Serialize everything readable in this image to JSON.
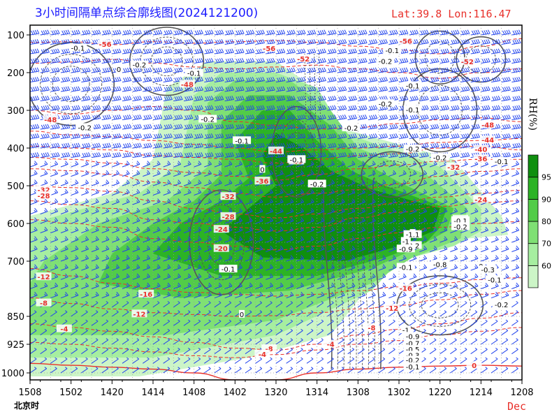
{
  "header": {
    "title": "3小时间隔单点综合廓线图(2024121200)",
    "location": "Lat:39.8  Lon:116.47"
  },
  "colors": {
    "temperature": "#e8302a",
    "barbs": "#2244ee",
    "omega": "#555555",
    "rh_levels": [
      "#ccf5c7",
      "#a6eea0",
      "#7fe074",
      "#52cc48",
      "#2cb325",
      "#0f8f0f"
    ]
  },
  "chart_data": {
    "type": "time-height cross section",
    "title": "3小时间隔单点综合廓线图(2024121200)",
    "x": {
      "tick_labels": [
        "1508",
        "1502",
        "1420",
        "1414",
        "1408",
        "1402",
        "1320",
        "1314",
        "1308",
        "1302",
        "1220",
        "1214",
        "1208"
      ],
      "name": "北京时",
      "month_label": "Dec",
      "range_hours": [
        0,
        72
      ],
      "direction": "reversed"
    },
    "y": {
      "tick_labels": [
        "100",
        "200",
        "300",
        "400",
        "500",
        "600",
        "700",
        "850",
        "925",
        "1000"
      ],
      "levels_hpa": [
        100,
        200,
        300,
        400,
        500,
        600,
        700,
        850,
        925,
        1000
      ],
      "range_hpa": [
        75,
        1010
      ]
    },
    "grid": true,
    "colorbar": {
      "title": "RH(%)",
      "tick_labels": [
        "60",
        "70",
        "80",
        "90",
        "95"
      ],
      "levels": [
        55,
        60,
        70,
        80,
        90,
        95,
        100
      ]
    },
    "temperature_isotherms": [
      {
        "label": "-56",
        "value": -56,
        "x": 55,
        "p": 118
      },
      {
        "label": "-56",
        "value": -56,
        "x": 35,
        "p": 137
      },
      {
        "label": "-56",
        "value": -56,
        "x": 11,
        "p": 126
      },
      {
        "label": "-52",
        "value": -52,
        "x": 64,
        "p": 172
      },
      {
        "label": "-52",
        "value": -52,
        "x": 40,
        "p": 165
      },
      {
        "label": "-48",
        "value": -48,
        "x": 23,
        "p": 232
      },
      {
        "label": "-48",
        "value": -48,
        "x": 67,
        "p": 340
      },
      {
        "label": "-48",
        "value": -48,
        "x": 3,
        "p": 326
      },
      {
        "label": "-44",
        "value": -44,
        "x": 67,
        "p": 380
      },
      {
        "label": "-44",
        "value": -44,
        "x": 36,
        "p": 409
      },
      {
        "label": "-40",
        "value": -40,
        "x": 66,
        "p": 405
      },
      {
        "label": "-40",
        "value": -40,
        "x": 39,
        "p": 436
      },
      {
        "label": "-36",
        "value": -36,
        "x": 66,
        "p": 430
      },
      {
        "label": "-36",
        "value": -36,
        "x": 34,
        "p": 489
      },
      {
        "label": "-32",
        "value": -32,
        "x": 62,
        "p": 452
      },
      {
        "label": "-32",
        "value": -32,
        "x": 29,
        "p": 530
      },
      {
        "label": "-32",
        "value": -32,
        "x": 2,
        "p": 512
      },
      {
        "label": "-28",
        "value": -28,
        "x": 29,
        "p": 583
      },
      {
        "label": "-28",
        "value": -28,
        "x": 2,
        "p": 528
      },
      {
        "label": "-24",
        "value": -24,
        "x": 66,
        "p": 538
      },
      {
        "label": "-24",
        "value": -24,
        "x": 28,
        "p": 617
      },
      {
        "label": "-20",
        "value": -20,
        "x": 63,
        "p": 590
      },
      {
        "label": "-20",
        "value": -20,
        "x": 28,
        "p": 668
      },
      {
        "label": "-16",
        "value": -16,
        "x": 55,
        "p": 775
      },
      {
        "label": "-16",
        "value": -16,
        "x": 17,
        "p": 791
      },
      {
        "label": "-12",
        "value": -12,
        "x": 53,
        "p": 829
      },
      {
        "label": "-12",
        "value": -12,
        "x": 16,
        "p": 845
      },
      {
        "label": "-12",
        "value": -12,
        "x": 2,
        "p": 744
      },
      {
        "label": "-8",
        "value": -8,
        "x": 50,
        "p": 882
      },
      {
        "label": "-8",
        "value": -8,
        "x": 35,
        "p": 938
      },
      {
        "label": "-8",
        "value": -8,
        "x": 2,
        "p": 815
      },
      {
        "label": "-4",
        "value": -4,
        "x": 44,
        "p": 926
      },
      {
        "label": "-4",
        "value": -4,
        "x": 34,
        "p": 952
      },
      {
        "label": "-4",
        "value": -4,
        "x": 5,
        "p": 885
      },
      {
        "label": "0",
        "value": 0,
        "x": 65,
        "p": 982
      }
    ],
    "vertical_velocity_contours": [
      {
        "label": "-0.1",
        "x": 65,
        "p": 135
      },
      {
        "label": "-0.1",
        "x": 58,
        "p": 127
      },
      {
        "label": "-0.2",
        "x": 47,
        "p": 180
      },
      {
        "label": "0",
        "x": 59,
        "p": 136
      },
      {
        "label": "-0.2",
        "x": 47,
        "p": 214
      },
      {
        "label": "-0.2",
        "x": 53,
        "p": 210
      },
      {
        "label": "0",
        "x": 46,
        "p": 230
      },
      {
        "label": "-0.1",
        "x": 37,
        "p": 240
      },
      {
        "label": "-0.2",
        "x": 45,
        "p": 255
      },
      {
        "label": "-0.1",
        "x": 44,
        "p": 281
      },
      {
        "label": "0",
        "x": 38,
        "p": 295
      },
      {
        "label": "-0.2",
        "x": 59,
        "p": 355
      },
      {
        "label": "-0.1",
        "x": 55,
        "p": 373
      },
      {
        "label": "-0.2",
        "x": 40,
        "p": 403
      },
      {
        "label": "-0.1",
        "x": 32,
        "p": 443
      },
      {
        "label": "-0.1",
        "x": 25,
        "p": 507
      },
      {
        "label": "-0.2",
        "x": 22,
        "p": 542
      },
      {
        "label": "0",
        "x": 29,
        "p": 466
      },
      {
        "label": "0",
        "x": 23,
        "p": 516
      },
      {
        "label": "0",
        "x": 45,
        "p": 629
      },
      {
        "label": "0",
        "x": 37,
        "p": 637
      },
      {
        "label": "-0.1",
        "x": 70,
        "p": 718
      },
      {
        "label": "0",
        "x": 7,
        "p": 735
      },
      {
        "label": "0",
        "x": 2,
        "p": 781
      },
      {
        "label": "-0.2",
        "x": 18,
        "p": 807
      },
      {
        "label": "-0.1",
        "x": 17,
        "p": 867
      },
      {
        "label": "-0.3",
        "x": 19,
        "p": 716
      },
      {
        "label": "-1.1",
        "x": 19,
        "p": 705
      },
      {
        "label": "-0.9",
        "x": 20,
        "p": 689
      },
      {
        "label": "-1",
        "x": 20,
        "p": 751
      },
      {
        "label": "-0.8",
        "x": 44,
        "p": 771
      },
      {
        "label": "-0.1",
        "x": 42,
        "p": 716
      },
      {
        "label": "-0.2",
        "x": 32,
        "p": 717
      },
      {
        "label": "0",
        "x": 64,
        "p": 719
      },
      {
        "label": "-1",
        "x": 19,
        "p": 720
      },
      {
        "label": "-0.9",
        "x": 18,
        "p": 742
      },
      {
        "label": "-0.3",
        "x": 62,
        "p": 824
      },
      {
        "label": "-0.2",
        "x": 59,
        "p": 847
      },
      {
        "label": "-0.1",
        "x": 57,
        "p": 864
      },
      {
        "label": "-0.5",
        "x": 18,
        "p": 870
      },
      {
        "label": "-0.4",
        "x": 17,
        "p": 896
      },
      {
        "label": "-0.1",
        "x": 16,
        "p": 934
      },
      {
        "label": "-0.2",
        "x": 16,
        "p": 956
      },
      {
        "label": "0",
        "x": 15,
        "p": 982
      }
    ],
    "vv_label_selection": [
      {
        "label": "-0.1",
        "x": 65,
        "p": 136
      },
      {
        "label": "-0.1",
        "x": 48,
        "p": 203
      },
      {
        "label": "-0.2",
        "x": 56,
        "p": 181
      },
      {
        "label": "0",
        "x": 59,
        "p": 193
      },
      {
        "label": "-0.2",
        "x": 46,
        "p": 325
      },
      {
        "label": "-0.2",
        "x": 64,
        "p": 347
      },
      {
        "label": "-0.1",
        "x": 41,
        "p": 382
      },
      {
        "label": "-0.2",
        "x": 30,
        "p": 497
      },
      {
        "label": "-0.1",
        "x": 33,
        "p": 432
      },
      {
        "label": "0",
        "x": 38,
        "p": 458
      },
      {
        "label": "-0.1",
        "x": 17,
        "p": 718
      },
      {
        "label": "-0.2",
        "x": 16,
        "p": 660
      },
      {
        "label": "0",
        "x": 16,
        "p": 628
      },
      {
        "label": "-0.1",
        "x": 43,
        "p": 723
      },
      {
        "label": "0",
        "x": 41,
        "p": 846
      },
      {
        "label": "-0.2",
        "x": 3,
        "p": 820
      },
      {
        "label": "-0.1",
        "x": 4,
        "p": 752
      },
      {
        "label": "0",
        "x": 6,
        "p": 715
      },
      {
        "label": "-1.1",
        "x": 16,
        "p": 631
      },
      {
        "label": "-1",
        "x": 17,
        "p": 649
      },
      {
        "label": "-0.9",
        "x": 17,
        "p": 669
      },
      {
        "label": "-0.8",
        "x": 12,
        "p": 710
      },
      {
        "label": "-0.3",
        "x": 5,
        "p": 725
      },
      {
        "label": "-0.1",
        "x": 9,
        "p": 594
      },
      {
        "label": "-0.2",
        "x": 9,
        "p": 610
      },
      {
        "label": "-0.1",
        "x": 3,
        "p": 437
      },
      {
        "label": "-0.2",
        "x": 12,
        "p": 427
      },
      {
        "label": "-0.2",
        "x": 16,
        "p": 404
      },
      {
        "label": "-0.1",
        "x": 16,
        "p": 300
      },
      {
        "label": "-0.2",
        "x": 20,
        "p": 284
      },
      {
        "label": "-0.1",
        "x": 16,
        "p": 236
      },
      {
        "label": "-1",
        "x": 17,
        "p": 888
      },
      {
        "label": "-0.9",
        "x": 16,
        "p": 905
      },
      {
        "label": "-0.7",
        "x": 16,
        "p": 924
      },
      {
        "label": "-0.5",
        "x": 16,
        "p": 940
      },
      {
        "label": "-0.3",
        "x": 16,
        "p": 955
      },
      {
        "label": "-0.2",
        "x": 16,
        "p": 968
      },
      {
        "label": "-0.1",
        "x": 16,
        "p": 985
      },
      {
        "label": "-0.2",
        "x": 20,
        "p": 171
      },
      {
        "label": "-0.1",
        "x": 19,
        "p": 143
      },
      {
        "label": "-0.2",
        "x": 25,
        "p": 348
      }
    ]
  }
}
